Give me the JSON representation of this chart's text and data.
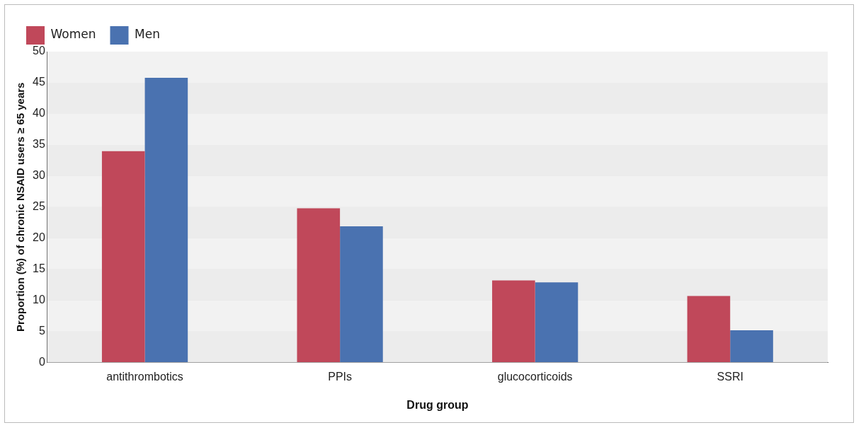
{
  "chart_data": {
    "type": "bar",
    "xlabel": "Drug group",
    "ylabel": "Proportion (%) of chronic NSAID users ≥ 65 years",
    "categories": [
      "antithrombotics",
      "PPIs",
      "glucocorticoids",
      "SSRI"
    ],
    "series": [
      {
        "name": "Women",
        "color": "#c0485a",
        "values": [
          34,
          24.8,
          13.2,
          10.7
        ]
      },
      {
        "name": "Men",
        "color": "#4a72b0",
        "values": [
          45.8,
          21.9,
          12.9,
          5.2
        ]
      }
    ],
    "ylim": [
      0,
      50
    ],
    "yticks": [
      0,
      5,
      10,
      15,
      20,
      25,
      30,
      35,
      40,
      45,
      50
    ],
    "grid": "y",
    "legend": "top left"
  }
}
